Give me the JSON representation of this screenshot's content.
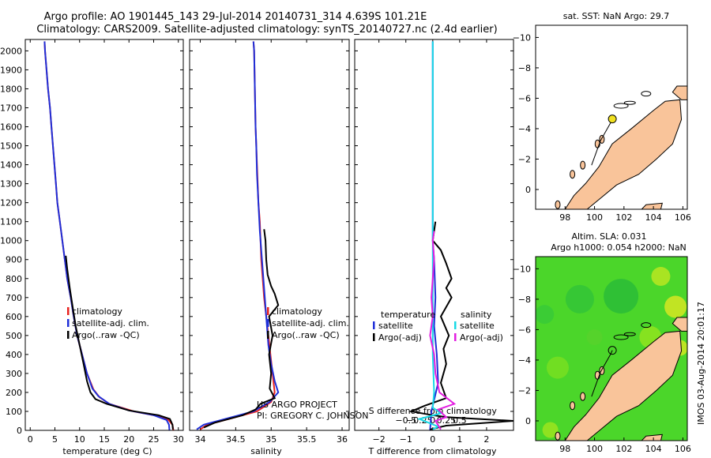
{
  "header": {
    "line1": "Argo profile: AO 1901445_143 29-Jul-2014 20140731_314 4.639S 101.21E",
    "line2": "Climatology: CARS2009. Satellite-adjusted climatology: synTS_20140727.nc (2.4d earlier)"
  },
  "colors": {
    "climatology": "#e8231f",
    "satellite": "#1f2fd8",
    "argo": "#000000",
    "sat_salinity": "#19d9e6",
    "argo_salinity": "#e21ee0",
    "land": "#f9c49a",
    "sla_green": "#4bd62a"
  },
  "chart_data": [
    {
      "id": "temperature",
      "type": "line",
      "xlabel": "temperature (deg C)",
      "xlim": [
        -1,
        31
      ],
      "ylim": [
        2060,
        0
      ],
      "xticks": [
        0,
        5,
        10,
        15,
        20,
        25,
        30
      ],
      "xtick_labels": [
        "0",
        "5",
        "10",
        "15",
        "20",
        "25",
        "30"
      ],
      "yticks": [
        0,
        100,
        200,
        300,
        400,
        500,
        600,
        700,
        800,
        900,
        1000,
        1100,
        1200,
        1300,
        1400,
        1500,
        1600,
        1700,
        1800,
        1900,
        2000
      ],
      "legend": [
        "climatology",
        "satellite-adj. clim.",
        "Argo(..raw -QC)"
      ],
      "series": [
        {
          "name": "climatology",
          "color": "#e8231f",
          "points": [
            [
              29,
              0
            ],
            [
              28.8,
              30
            ],
            [
              28,
              55
            ],
            [
              26,
              75
            ],
            [
              21,
              100
            ],
            [
              16,
              140
            ],
            [
              14,
              175
            ],
            [
              12.8,
              215
            ],
            [
              11.5,
              300
            ],
            [
              10.5,
              400
            ],
            [
              9.5,
              500
            ],
            [
              8.8,
              600
            ],
            [
              8.2,
              700
            ],
            [
              7.5,
              800
            ],
            [
              7,
              900
            ],
            [
              6.5,
              1000
            ],
            [
              6,
              1100
            ],
            [
              5.5,
              1200
            ],
            [
              5.2,
              1300
            ],
            [
              4.9,
              1400
            ],
            [
              4.6,
              1500
            ],
            [
              4.3,
              1600
            ],
            [
              4,
              1700
            ],
            [
              3.6,
              1800
            ],
            [
              3.3,
              1900
            ],
            [
              3,
              2000
            ],
            [
              2.9,
              2050
            ]
          ]
        },
        {
          "name": "satellite-adj. clim.",
          "color": "#1f2fd8",
          "points": [
            [
              28.2,
              0
            ],
            [
              28.1,
              30
            ],
            [
              27.6,
              55
            ],
            [
              25,
              80
            ],
            [
              20,
              105
            ],
            [
              16,
              140
            ],
            [
              13.8,
              180
            ],
            [
              12.6,
              220
            ],
            [
              11.5,
              300
            ],
            [
              10.5,
              400
            ],
            [
              9.5,
              500
            ],
            [
              8.8,
              600
            ],
            [
              8.2,
              700
            ],
            [
              7.5,
              800
            ],
            [
              7,
              900
            ],
            [
              6.5,
              1000
            ],
            [
              6,
              1100
            ],
            [
              5.5,
              1200
            ],
            [
              5.2,
              1300
            ],
            [
              4.9,
              1400
            ],
            [
              4.6,
              1500
            ],
            [
              4.3,
              1600
            ],
            [
              4,
              1700
            ],
            [
              3.6,
              1800
            ],
            [
              3.3,
              1900
            ],
            [
              3,
              2000
            ],
            [
              2.9,
              2050
            ]
          ]
        },
        {
          "name": "Argo(..raw -QC)",
          "color": "#000000",
          "points": [
            [
              28.9,
              5
            ],
            [
              28.8,
              30
            ],
            [
              28.3,
              60
            ],
            [
              26,
              80
            ],
            [
              20,
              105
            ],
            [
              15.5,
              140
            ],
            [
              13.2,
              165
            ],
            [
              12.2,
              200
            ],
            [
              11.5,
              260
            ],
            [
              10.8,
              350
            ],
            [
              10,
              450
            ],
            [
              9.2,
              550
            ],
            [
              8.6,
              650
            ],
            [
              8,
              750
            ],
            [
              7.5,
              850
            ],
            [
              7.2,
              920
            ]
          ]
        }
      ]
    },
    {
      "id": "salinity",
      "type": "line",
      "xlabel": "salinity",
      "xlim": [
        33.85,
        36.1
      ],
      "ylim": [
        2060,
        0
      ],
      "xticks": [
        34,
        34.5,
        35,
        35.5,
        36
      ],
      "xtick_labels": [
        "34",
        "34.5",
        "35",
        "35.5",
        "36"
      ],
      "legend": [
        "climatology",
        "satellite-adj. clim.",
        "Argo(..raw -QC)"
      ],
      "annotations": [
        "US ARGO PROJECT",
        "PI: GREGORY C. JOHNSON"
      ],
      "series": [
        {
          "name": "climatology",
          "color": "#e8231f",
          "points": [
            [
              34.0,
              5
            ],
            [
              34.1,
              30
            ],
            [
              34.4,
              60
            ],
            [
              34.8,
              100
            ],
            [
              35.0,
              150
            ],
            [
              35.05,
              200
            ],
            [
              35.02,
              300
            ],
            [
              34.99,
              400
            ],
            [
              34.96,
              500
            ],
            [
              34.93,
              600
            ],
            [
              34.9,
              700
            ],
            [
              34.88,
              800
            ],
            [
              34.86,
              900
            ],
            [
              34.85,
              1000
            ],
            [
              34.84,
              1100
            ],
            [
              34.82,
              1200
            ],
            [
              34.81,
              1300
            ],
            [
              34.8,
              1400
            ],
            [
              34.79,
              1500
            ],
            [
              34.78,
              1600
            ],
            [
              34.77,
              1800
            ],
            [
              34.76,
              2000
            ],
            [
              34.75,
              2050
            ]
          ]
        },
        {
          "name": "satellite-adj. clim.",
          "color": "#1f2fd8",
          "points": [
            [
              33.95,
              5
            ],
            [
              34.05,
              30
            ],
            [
              34.35,
              60
            ],
            [
              34.75,
              100
            ],
            [
              34.98,
              150
            ],
            [
              35.1,
              200
            ],
            [
              35.05,
              260
            ],
            [
              35.0,
              350
            ],
            [
              34.96,
              450
            ],
            [
              34.94,
              550
            ],
            [
              34.92,
              650
            ],
            [
              34.9,
              750
            ],
            [
              34.88,
              850
            ],
            [
              34.86,
              950
            ],
            [
              34.84,
              1050
            ],
            [
              34.82,
              1200
            ],
            [
              34.8,
              1350
            ],
            [
              34.79,
              1500
            ],
            [
              34.78,
              1600
            ],
            [
              34.77,
              1800
            ],
            [
              34.76,
              2000
            ],
            [
              34.75,
              2050
            ]
          ]
        },
        {
          "name": "Argo(..raw -QC)",
          "color": "#000000",
          "points": [
            [
              34.05,
              15
            ],
            [
              34.2,
              40
            ],
            [
              34.6,
              80
            ],
            [
              34.78,
              110
            ],
            [
              34.85,
              140
            ],
            [
              35.05,
              170
            ],
            [
              34.98,
              220
            ],
            [
              35.0,
              300
            ],
            [
              34.97,
              400
            ],
            [
              35.02,
              500
            ],
            [
              34.97,
              600
            ],
            [
              35.1,
              660
            ],
            [
              35.05,
              720
            ],
            [
              35.0,
              760
            ],
            [
              34.95,
              820
            ],
            [
              34.93,
              900
            ],
            [
              34.92,
              1000
            ],
            [
              34.9,
              1060
            ]
          ]
        }
      ]
    },
    {
      "id": "difference",
      "type": "line",
      "xlabel": "T difference from climatology",
      "xlabel_top": "S difference from climatology",
      "xlim": [
        -2.9,
        3
      ],
      "ylim": [
        2060,
        0
      ],
      "xticks": [
        -2,
        -1,
        0,
        1,
        2
      ],
      "xtick_labels": [
        "−2",
        "−1",
        "0",
        "1",
        "2"
      ],
      "s_xticks": [
        -0.5,
        -0.25,
        0,
        0.25,
        0.5
      ],
      "s_xtick_labels": [
        "−0.5",
        "−0.25",
        "0",
        "0.25",
        "0.5"
      ],
      "s_scale": 2,
      "legend_headers": [
        "temperature",
        "salinity"
      ],
      "legend": [
        "satellite",
        "Argo(-adj)",
        "satellite",
        "Argo(-adj)"
      ],
      "series": [
        {
          "name": "temperature satellite",
          "color": "#1f2fd8",
          "points": [
            [
              -0.1,
              0
            ],
            [
              -0.05,
              100
            ],
            [
              0.2,
              250
            ],
            [
              0.15,
              400
            ],
            [
              0.05,
              550
            ],
            [
              0.1,
              700
            ],
            [
              0.05,
              900
            ],
            [
              0,
              1000
            ],
            [
              0,
              1200
            ],
            [
              0,
              1600
            ],
            [
              0,
              2050
            ]
          ]
        },
        {
          "name": "temperature Argo(-adj)",
          "color": "#000000",
          "points": [
            [
              -0.1,
              5
            ],
            [
              0.5,
              25
            ],
            [
              3,
              50
            ],
            [
              0.5,
              70
            ],
            [
              0,
              80
            ],
            [
              -0.8,
              100
            ],
            [
              -0.3,
              130
            ],
            [
              0.5,
              170
            ],
            [
              0.3,
              250
            ],
            [
              0.5,
              350
            ],
            [
              0.4,
              430
            ],
            [
              0.6,
              500
            ],
            [
              0.3,
              600
            ],
            [
              0.7,
              700
            ],
            [
              0.5,
              750
            ],
            [
              0.7,
              800
            ],
            [
              0.5,
              880
            ],
            [
              0.3,
              950
            ],
            [
              0,
              1000
            ],
            [
              0.1,
              1100
            ]
          ]
        },
        {
          "name": "salinity satellite",
          "color": "#19d9e6",
          "points": [
            [
              0,
              5
            ],
            [
              0.2,
              20
            ],
            [
              -0.5,
              60
            ],
            [
              0.3,
              90
            ],
            [
              0,
              120
            ],
            [
              0.05,
              200
            ],
            [
              0,
              400
            ],
            [
              0,
              600
            ],
            [
              0,
              800
            ],
            [
              0,
              1000
            ],
            [
              0,
              1200
            ],
            [
              0,
              1600
            ],
            [
              0,
              2050
            ]
          ]
        },
        {
          "name": "salinity Argo(-adj)",
          "color": "#e21ee0",
          "points": [
            [
              0.3,
              5
            ],
            [
              0.1,
              50
            ],
            [
              0.5,
              70
            ],
            [
              0.2,
              110
            ],
            [
              0.8,
              140
            ],
            [
              0.25,
              200
            ],
            [
              0.1,
              300
            ],
            [
              0.05,
              400
            ],
            [
              -0.1,
              500
            ],
            [
              0,
              600
            ],
            [
              -0.05,
              700
            ],
            [
              0,
              800
            ],
            [
              0.05,
              900
            ],
            [
              0,
              1000
            ],
            [
              0.05,
              1050
            ]
          ]
        }
      ]
    },
    {
      "id": "sst_map",
      "type": "scatter",
      "title": "sat. SST: NaN Argo: 29.7",
      "xlim": [
        96,
        106.3
      ],
      "ylim": [
        -10.8,
        1.3
      ],
      "xticks": [
        98,
        100,
        102,
        104,
        106
      ],
      "yticks": [
        0,
        -2,
        -4,
        -6,
        -8,
        -10
      ],
      "points": [
        [
          101.21,
          -4.639
        ]
      ]
    },
    {
      "id": "sla_map",
      "type": "heatmap",
      "title_line1": "Altim. SLA: 0.031",
      "title_line2": "Argo h1000: 0.054 h2000: NaN",
      "side_label": "IMOS 03-Aug-2014 20:01:17",
      "xlim": [
        96,
        106.3
      ],
      "ylim": [
        -10.8,
        1.3
      ],
      "xticks": [
        98,
        100,
        102,
        104,
        106
      ],
      "yticks": [
        0,
        -2,
        -4,
        -6,
        -8,
        -10
      ],
      "points": [
        [
          101.21,
          -4.639
        ]
      ]
    }
  ]
}
